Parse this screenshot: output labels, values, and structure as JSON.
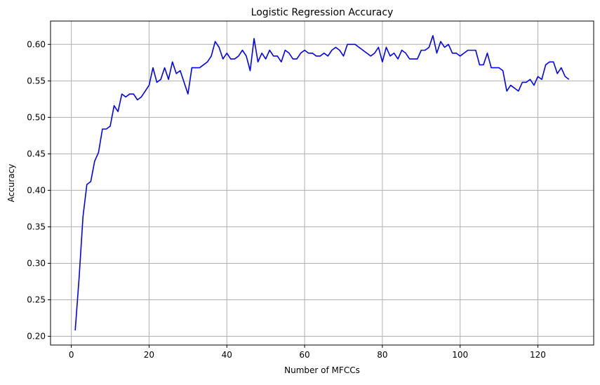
{
  "chart_data": {
    "type": "line",
    "title": "Logistic Regression Accuracy",
    "xlabel": "Number of MFCCs",
    "ylabel": "Accuracy",
    "xlim": [
      -5.35,
      134.35
    ],
    "ylim": [
      0.188,
      0.632
    ],
    "xticks": [
      0,
      20,
      40,
      60,
      80,
      100,
      120
    ],
    "yticks": [
      0.2,
      0.25,
      0.3,
      0.35,
      0.4,
      0.45,
      0.5,
      0.55,
      0.6
    ],
    "xtick_labels": [
      "0",
      "20",
      "40",
      "60",
      "80",
      "100",
      "120"
    ],
    "ytick_labels": [
      "0.20",
      "0.25",
      "0.30",
      "0.35",
      "0.40",
      "0.45",
      "0.50",
      "0.55",
      "0.60"
    ],
    "grid": true,
    "line_color": "#0000ff",
    "grid_color": "#b0b0b0",
    "series": [
      {
        "x": [
          1,
          2,
          3,
          4,
          5,
          6,
          7,
          8,
          9,
          10,
          11,
          12,
          13,
          14,
          15,
          16,
          17,
          18,
          19,
          20,
          21,
          22,
          23,
          24,
          25,
          26,
          27,
          28,
          29,
          30,
          31,
          32,
          33,
          34,
          35,
          36,
          37,
          38,
          39,
          40,
          41,
          42,
          43,
          44,
          45,
          46,
          47,
          48,
          49,
          50,
          51,
          52,
          53,
          54,
          55,
          56,
          57,
          58,
          59,
          60,
          61,
          62,
          63,
          64,
          65,
          66,
          67,
          68,
          69,
          70,
          71,
          72,
          73,
          74,
          75,
          76,
          77,
          78,
          79,
          80,
          81,
          82,
          83,
          84,
          85,
          86,
          87,
          88,
          89,
          90,
          91,
          92,
          93,
          94,
          95,
          96,
          97,
          98,
          99,
          100,
          101,
          102,
          103,
          104,
          105,
          106,
          107,
          108,
          109,
          110,
          111,
          112,
          113,
          114,
          115,
          116,
          117,
          118,
          119,
          120,
          121,
          122,
          123,
          124,
          125,
          126,
          127,
          128
        ],
        "y": [
          0.208,
          0.28,
          0.364,
          0.408,
          0.412,
          0.44,
          0.452,
          0.484,
          0.484,
          0.488,
          0.516,
          0.508,
          0.532,
          0.528,
          0.532,
          0.532,
          0.524,
          0.528,
          0.536,
          0.544,
          0.568,
          0.548,
          0.552,
          0.568,
          0.552,
          0.576,
          0.56,
          0.564,
          0.548,
          0.532,
          0.568,
          0.568,
          0.568,
          0.572,
          0.576,
          0.584,
          0.604,
          0.596,
          0.58,
          0.588,
          0.58,
          0.58,
          0.584,
          0.592,
          0.584,
          0.564,
          0.608,
          0.576,
          0.588,
          0.58,
          0.592,
          0.584,
          0.584,
          0.576,
          0.592,
          0.588,
          0.58,
          0.58,
          0.588,
          0.592,
          0.588,
          0.588,
          0.584,
          0.584,
          0.588,
          0.584,
          0.592,
          0.596,
          0.592,
          0.584,
          0.6,
          0.6,
          0.6,
          0.596,
          0.592,
          0.588,
          0.584,
          0.588,
          0.596,
          0.576,
          0.596,
          0.584,
          0.588,
          0.58,
          0.592,
          0.588,
          0.58,
          0.58,
          0.58,
          0.592,
          0.592,
          0.596,
          0.612,
          0.588,
          0.604,
          0.596,
          0.6,
          0.588,
          0.588,
          0.584,
          0.588,
          0.592,
          0.592,
          0.592,
          0.572,
          0.572,
          0.588,
          0.568,
          0.568,
          0.568,
          0.564,
          0.536,
          0.544,
          0.54,
          0.536,
          0.548,
          0.548,
          0.552,
          0.544,
          0.556,
          0.552,
          0.572,
          0.576,
          0.576,
          0.56,
          0.568,
          0.556,
          0.552
        ]
      }
    ]
  }
}
